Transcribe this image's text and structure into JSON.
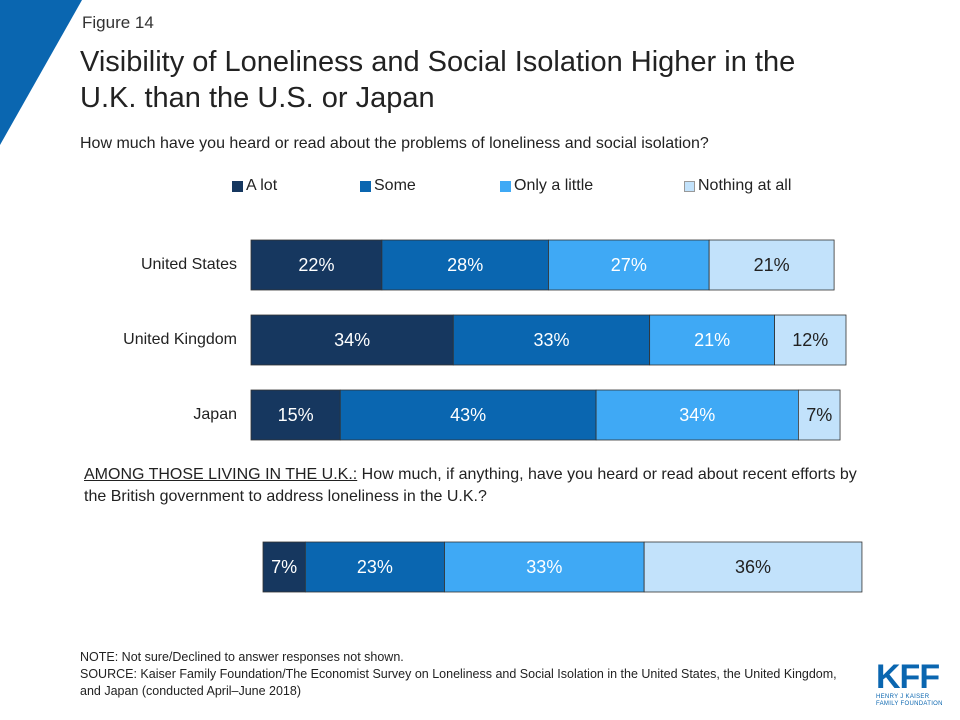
{
  "figure_label": "Figure 14",
  "title": "Visibility of Loneliness and Social Isolation Higher in the U.K. than the U.S. or Japan",
  "question": "How much have you heard or read about the problems of loneliness and social isolation?",
  "question2": {
    "lead": "AMONG THOSE LIVING IN THE U.K.:",
    "rest": " How much, if anything, have you heard or read about recent efforts by the British government to address loneliness in the U.K.?"
  },
  "note": "NOTE: Not sure/Declined to answer responses not shown.",
  "source": "SOURCE: Kaiser Family Foundation/The Economist Survey on Loneliness and Social Isolation in the United States, the United Kingdom, and Japan (conducted April–June 2018)",
  "logo": {
    "mark": "KFF",
    "line1": "HENRY J KAISER",
    "line2": "FAMILY FOUNDATION"
  },
  "colors": {
    "a_lot": "#16375f",
    "some": "#0a66b0",
    "only_a_little": "#3fa9f5",
    "nothing": "#c2e2fb",
    "corner": "#0a66b0"
  },
  "chart_data": [
    {
      "type": "bar",
      "orientation": "horizontal-stacked",
      "legend": [
        "A lot",
        "Some",
        "Only a little",
        "Nothing at all"
      ],
      "legend_position": "top",
      "categories": [
        "United States",
        "United Kingdom",
        "Japan"
      ],
      "series": [
        {
          "name": "A lot",
          "values": [
            22,
            34,
            15
          ]
        },
        {
          "name": "Some",
          "values": [
            28,
            33,
            43
          ]
        },
        {
          "name": "Only a little",
          "values": [
            27,
            21,
            34
          ]
        },
        {
          "name": "Nothing at all",
          "values": [
            21,
            12,
            7
          ]
        }
      ],
      "unit": "%"
    },
    {
      "type": "bar",
      "orientation": "horizontal-stacked",
      "categories": [
        ""
      ],
      "series": [
        {
          "name": "A lot",
          "values": [
            7
          ]
        },
        {
          "name": "Some",
          "values": [
            23
          ]
        },
        {
          "name": "Only a little",
          "values": [
            33
          ]
        },
        {
          "name": "Nothing at all",
          "values": [
            36
          ]
        }
      ],
      "unit": "%"
    }
  ]
}
